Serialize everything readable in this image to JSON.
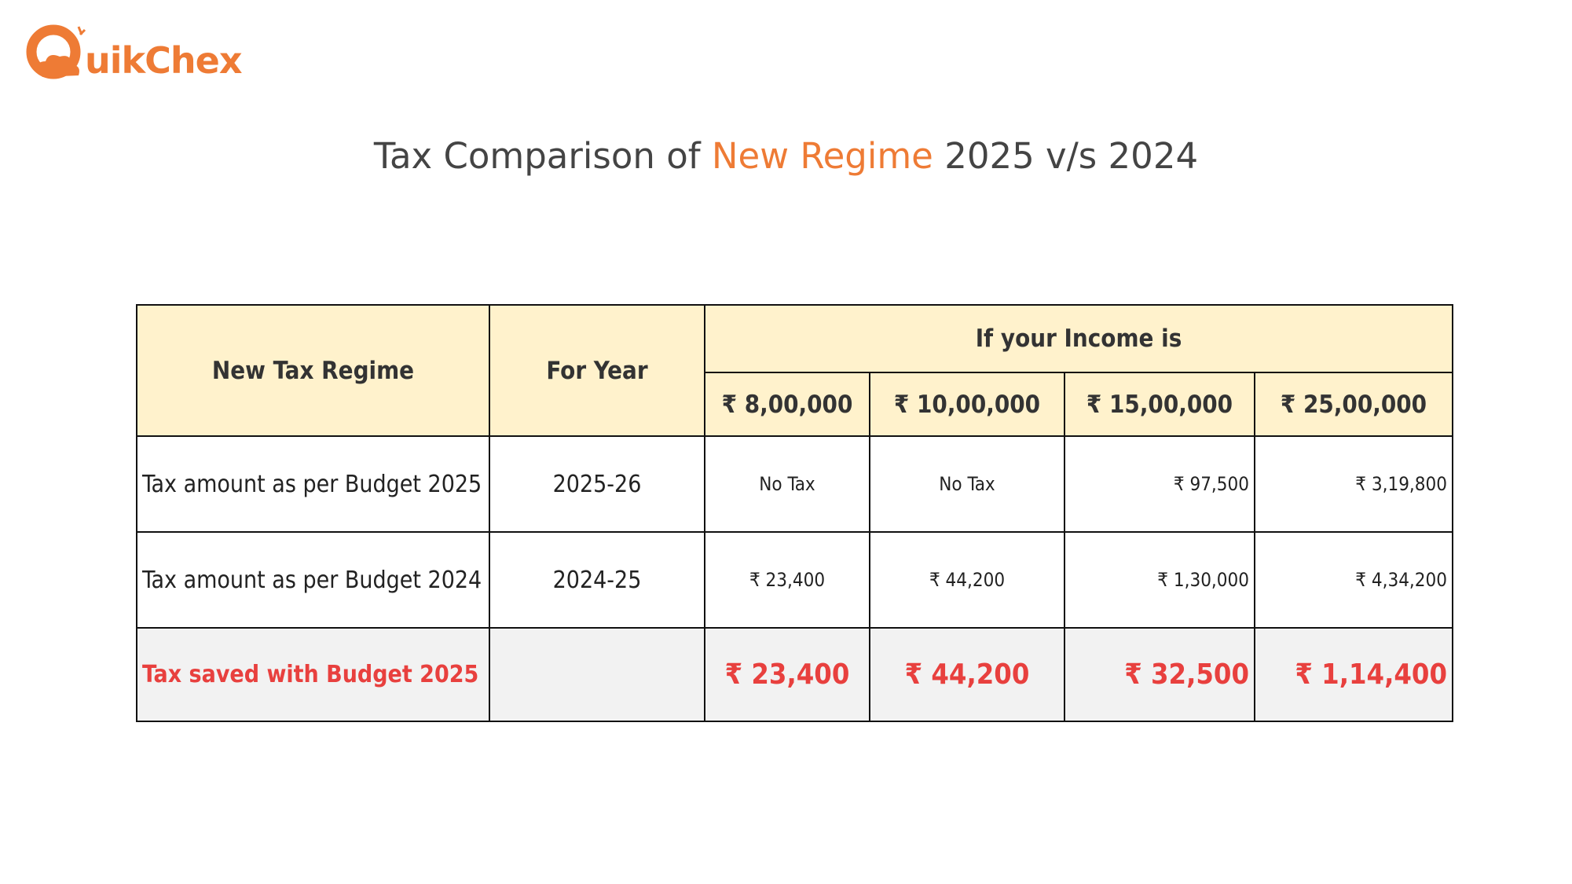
{
  "brand": {
    "name": "uikChex"
  },
  "title": {
    "parts": [
      "Tax Comparison of",
      "New Regime",
      "2025 v/s 2024"
    ]
  },
  "table": {
    "headers": [
      "New Tax Regime",
      "For Year",
      "If your Income is"
    ],
    "incomes": [
      "₹ 8,00,000",
      "₹ 10,00,000",
      "₹ 15,00,000",
      "₹ 25,00,000"
    ],
    "rows": [
      {
        "label": "Tax amount as per Budget 2025",
        "year": "2025-26",
        "values": [
          "No Tax",
          "No Tax",
          "₹ 97,500",
          "₹ 3,19,800"
        ]
      },
      {
        "label": "Tax amount as per Budget 2024",
        "year": "2024-25",
        "values": [
          "₹ 23,400",
          "₹ 44,200",
          "₹ 1,30,000",
          "₹ 4,34,200"
        ]
      },
      {
        "label": "Tax saved with Budget 2025",
        "values": [
          "₹ 23,400",
          "₹ 44,200",
          "₹ 32,500",
          "₹ 1,14,400"
        ]
      }
    ]
  }
}
